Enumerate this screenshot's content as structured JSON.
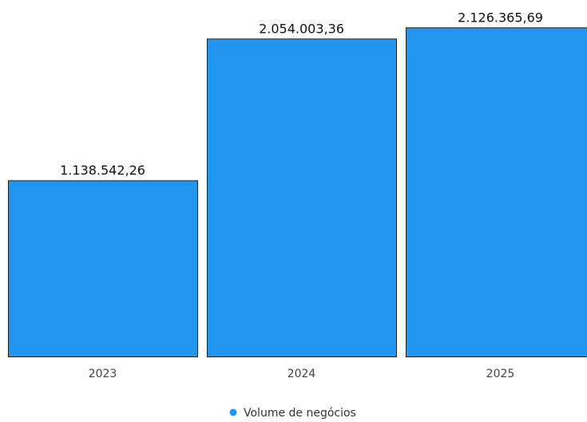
{
  "chart_data": {
    "type": "bar",
    "categories": [
      "2023",
      "2024",
      "2025"
    ],
    "series": [
      {
        "name": "Volume de negócios",
        "values": [
          1138542.26,
          2054003.36,
          2126365.69
        ],
        "value_labels": [
          "1.138.542,26",
          "2.054.003,36",
          "2.126.365,69"
        ],
        "color": "#2196f0"
      }
    ],
    "title": "",
    "xlabel": "",
    "ylabel": "",
    "ylim": [
      0,
      2200000
    ],
    "grid": false,
    "legend": "bottom-center",
    "bar_outline_color": "#222222"
  }
}
